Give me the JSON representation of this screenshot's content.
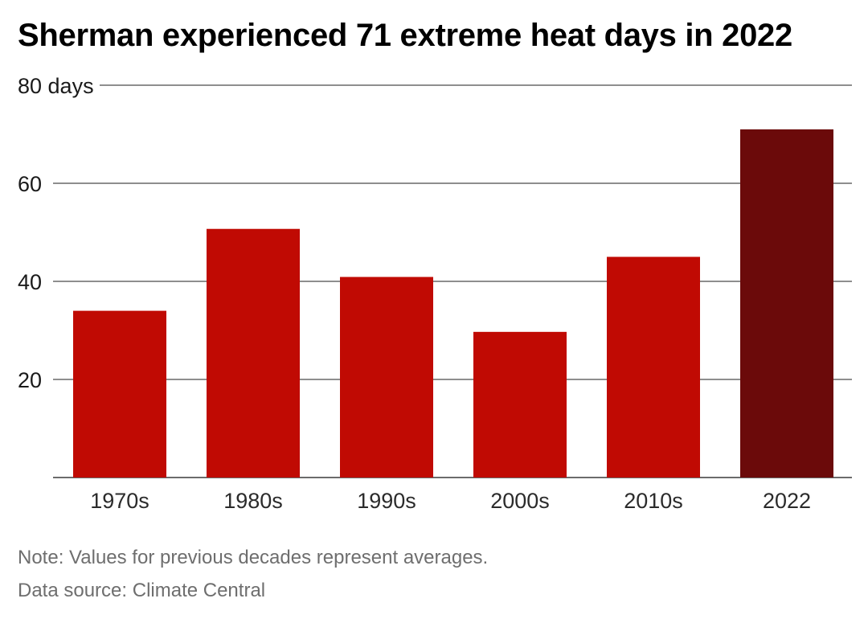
{
  "title": "Sherman experienced 71 extreme heat days in 2022",
  "note": "Note: Values for previous decades represent averages.",
  "source": "Data source: Climate Central",
  "colors": {
    "bar": "#c00a03",
    "highlight": "#6b0a0a",
    "grid": "#4a4a4a"
  },
  "chart_data": {
    "type": "bar",
    "title": "Sherman experienced 71 extreme heat days in 2022",
    "categories": [
      "1970s",
      "1980s",
      "1990s",
      "2000s",
      "2010s",
      "2022"
    ],
    "values": [
      34,
      50.7,
      40.9,
      29.7,
      45,
      71
    ],
    "ylim": [
      0,
      80
    ],
    "yticks": [
      20,
      40,
      60,
      80
    ],
    "ytick_labels": [
      "20",
      "40",
      "60",
      "80 days"
    ],
    "highlight_category": "2022",
    "grid": true
  }
}
